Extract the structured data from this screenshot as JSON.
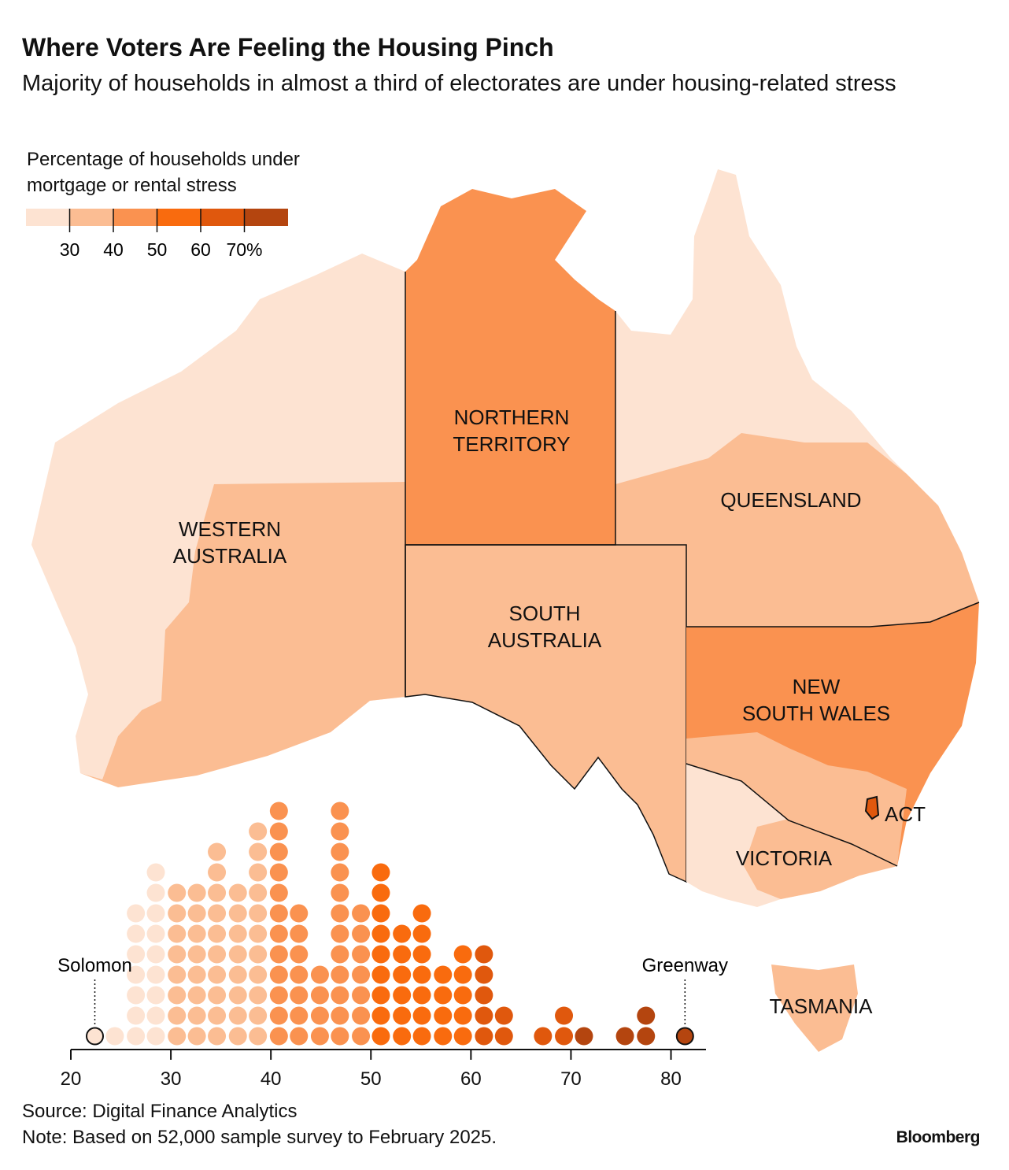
{
  "title": "Where Voters Are Feeling the Housing Pinch",
  "subtitle": "Majority of households in almost a third of electorates are under housing-related stress",
  "legend": {
    "title": "Percentage of households under mortgage or rental stress",
    "lim": [
      20,
      80
    ],
    "ticks": [
      30,
      40,
      50,
      60,
      {
        "value": 70,
        "label": "70%"
      }
    ],
    "colors": [
      "#fde3d2",
      "#fbbd93",
      "#fa9250",
      "#f96b0e",
      "#e0580d",
      "#b4450f"
    ]
  },
  "map": {
    "regions": [
      {
        "label": [
          "WESTERN",
          "AUSTRALIA"
        ],
        "color": "#fde3d2",
        "inner_color": "#fbbd93"
      },
      {
        "label": [
          "NORTHERN",
          "TERRITORY"
        ],
        "color": "#fa9250"
      },
      {
        "label": [
          "QUEENSLAND"
        ],
        "color": "#fde3d2",
        "inner_color": "#fbbd93"
      },
      {
        "label": [
          "SOUTH",
          "AUSTRALIA"
        ],
        "color": "#fbbd93"
      },
      {
        "label": [
          "NEW",
          "SOUTH WALES"
        ],
        "color": "#fa9250",
        "inner_color": "#fbbd93"
      },
      {
        "label": [
          "ACT"
        ],
        "color": "#e0580d"
      },
      {
        "label": [
          "VICTORIA"
        ],
        "color": "#fde3d2",
        "inner_color": "#fbbd93"
      },
      {
        "label": [
          "TASMANIA"
        ],
        "color": "#fbbd93"
      }
    ]
  },
  "chart_data": {
    "type": "dot",
    "x": [
      22.4,
      24.4,
      26.5,
      28.5,
      30.6,
      32.6,
      34.6,
      36.7,
      38.7,
      40.8,
      42.8,
      44.9,
      46.9,
      49.0,
      51.0,
      53.1,
      55.1,
      57.2,
      59.2,
      61.3,
      63.3,
      67.2,
      69.3,
      71.3,
      75.4,
      77.5,
      81.4
    ],
    "counts": [
      1,
      1,
      7,
      9,
      8,
      8,
      10,
      8,
      11,
      12,
      7,
      4,
      12,
      7,
      9,
      6,
      7,
      4,
      5,
      5,
      2,
      1,
      2,
      1,
      1,
      2,
      1
    ],
    "xlim": [
      20,
      83.5
    ],
    "xticks": [
      20,
      30,
      40,
      50,
      60,
      70,
      80
    ],
    "annotations": [
      {
        "label": "Solomon",
        "x": 22.4
      },
      {
        "label": "Greenway",
        "x": 81.4
      }
    ]
  },
  "footer": {
    "source": "Source: Digital Finance Analytics",
    "note": "Note: Based on 52,000 sample survey to February 2025.",
    "brand": "Bloomberg"
  }
}
